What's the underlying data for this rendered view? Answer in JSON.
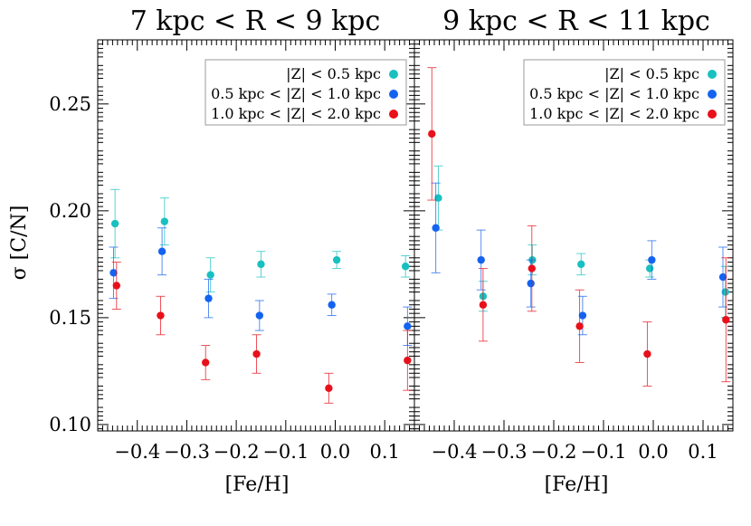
{
  "chart_data": [
    {
      "type": "scatter",
      "title": "7 kpc < R < 9 kpc",
      "xlabel": "[Fe/H]",
      "ylabel": "σ [C/N]",
      "xlim": [
        -0.48,
        0.16
      ],
      "ylim": [
        0.097,
        0.28
      ],
      "xticks": [
        "-0.4",
        "-0.3",
        "-0.2",
        "-0.1",
        "0.0",
        "0.1"
      ],
      "yticks": [
        "0.10",
        "0.15",
        "0.20",
        "0.25"
      ],
      "legend_position": "top-right",
      "series": [
        {
          "name": "|Z| < 0.5 kpc",
          "color": "#19c0c0",
          "points": [
            {
              "x": -0.445,
              "y": 0.194,
              "err": 0.016
            },
            {
              "x": -0.345,
              "y": 0.195,
              "err": 0.011
            },
            {
              "x": -0.252,
              "y": 0.17,
              "err": 0.008
            },
            {
              "x": -0.15,
              "y": 0.175,
              "err": 0.006
            },
            {
              "x": 0.003,
              "y": 0.177,
              "err": 0.004
            },
            {
              "x": 0.142,
              "y": 0.174,
              "err": 0.005
            }
          ]
        },
        {
          "name": "0.5 kpc < |Z| < 1.0 kpc",
          "color": "#1463f0",
          "points": [
            {
              "x": -0.448,
              "y": 0.171,
              "err": 0.012
            },
            {
              "x": -0.35,
              "y": 0.181,
              "err": 0.011
            },
            {
              "x": -0.256,
              "y": 0.159,
              "err": 0.009
            },
            {
              "x": -0.153,
              "y": 0.151,
              "err": 0.007
            },
            {
              "x": -0.007,
              "y": 0.156,
              "err": 0.005
            },
            {
              "x": 0.146,
              "y": 0.146,
              "err": 0.009
            }
          ]
        },
        {
          "name": "1.0 kpc < |Z| < 2.0 kpc",
          "color": "#e8101a",
          "points": [
            {
              "x": -0.442,
              "y": 0.165,
              "err": 0.011
            },
            {
              "x": -0.353,
              "y": 0.151,
              "err": 0.009
            },
            {
              "x": -0.262,
              "y": 0.129,
              "err": 0.008
            },
            {
              "x": -0.159,
              "y": 0.133,
              "err": 0.009
            },
            {
              "x": -0.013,
              "y": 0.117,
              "err": 0.007
            },
            {
              "x": 0.146,
              "y": 0.13,
              "err": 0.014
            }
          ]
        }
      ]
    },
    {
      "type": "scatter",
      "title": "9 kpc < R < 11 kpc",
      "xlabel": "[Fe/H]",
      "ylabel": "",
      "xlim": [
        -0.48,
        0.16
      ],
      "ylim": [
        0.097,
        0.28
      ],
      "xticks": [
        "-0.4",
        "-0.3",
        "-0.2",
        "-0.1",
        "0.0",
        "0.1"
      ],
      "yticks": [],
      "legend_position": "top-right",
      "series": [
        {
          "name": "|Z| < 0.5 kpc",
          "color": "#19c0c0",
          "points": [
            {
              "x": -0.432,
              "y": 0.206,
              "err": 0.015
            },
            {
              "x": -0.342,
              "y": 0.16,
              "err": 0.007
            },
            {
              "x": -0.243,
              "y": 0.177,
              "err": 0.007
            },
            {
              "x": -0.145,
              "y": 0.175,
              "err": 0.005
            },
            {
              "x": -0.007,
              "y": 0.173,
              "err": 0.004
            },
            {
              "x": 0.145,
              "y": 0.162,
              "err": 0.012
            }
          ]
        },
        {
          "name": "0.5 kpc < |Z| < 1.0 kpc",
          "color": "#1463f0",
          "points": [
            {
              "x": -0.437,
              "y": 0.192,
              "err": 0.021
            },
            {
              "x": -0.346,
              "y": 0.177,
              "err": 0.014
            },
            {
              "x": -0.246,
              "y": 0.166,
              "err": 0.011
            },
            {
              "x": -0.142,
              "y": 0.151,
              "err": 0.009
            },
            {
              "x": -0.003,
              "y": 0.177,
              "err": 0.009
            },
            {
              "x": 0.14,
              "y": 0.169,
              "err": 0.014
            }
          ]
        },
        {
          "name": "1.0 kpc < |Z| < 2.0 kpc",
          "color": "#e8101a",
          "points": [
            {
              "x": -0.445,
              "y": 0.236,
              "err": 0.031
            },
            {
              "x": -0.342,
              "y": 0.156,
              "err": 0.017
            },
            {
              "x": -0.244,
              "y": 0.173,
              "err": 0.02
            },
            {
              "x": -0.148,
              "y": 0.146,
              "err": 0.017
            },
            {
              "x": -0.012,
              "y": 0.133,
              "err": 0.015
            },
            {
              "x": 0.146,
              "y": 0.149,
              "err": 0.029
            }
          ]
        }
      ]
    }
  ]
}
